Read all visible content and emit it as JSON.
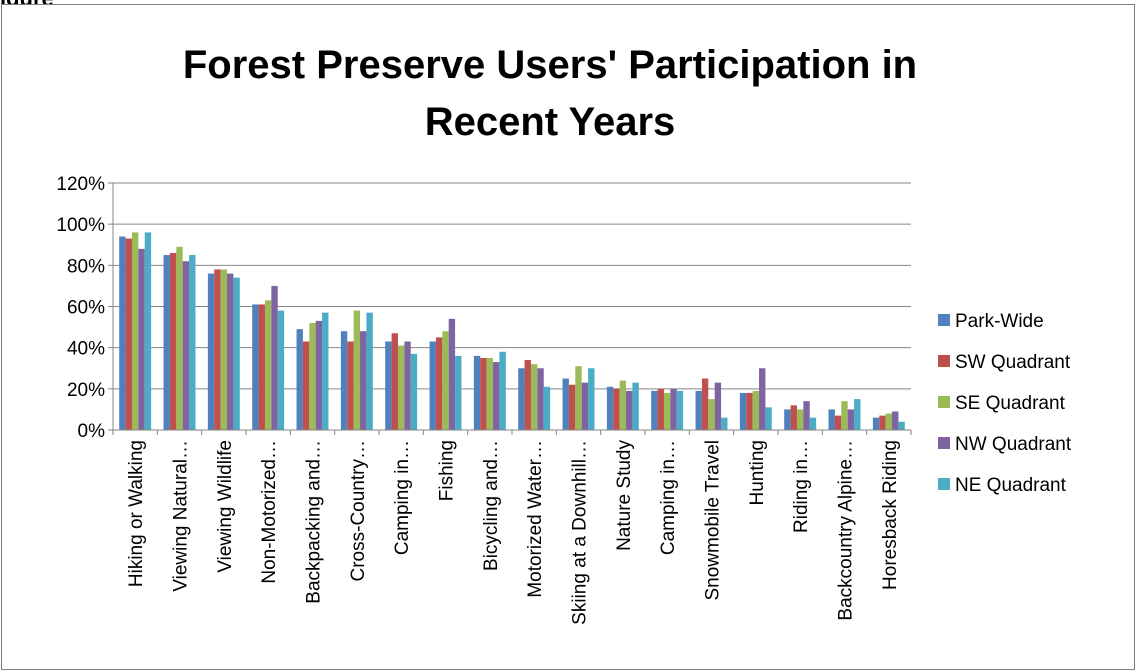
{
  "caption": "igure",
  "chart_data": {
    "type": "bar",
    "title": "Forest Preserve Users' Participation in Recent Years",
    "title_lines": [
      "Forest Preserve Users' Participation in",
      "Recent Years"
    ],
    "xlabel": "",
    "ylabel": "",
    "ylim": [
      0,
      1.2
    ],
    "y_ticks": [
      0,
      0.2,
      0.4,
      0.6,
      0.8,
      1.0,
      1.2
    ],
    "y_tick_labels": [
      "0%",
      "20%",
      "40%",
      "60%",
      "80%",
      "100%",
      "120%"
    ],
    "grid": true,
    "legend_position": "right",
    "categories": [
      "Hiking or Walking",
      "Viewing Natural…",
      "Viewing Wildlife",
      "Non-Motorized…",
      "Backpacking and…",
      "Cross-Country…",
      "Camping in…",
      "Fishing",
      "Bicycling and…",
      "Motorized Water…",
      "Skiing at a Downhill…",
      "Nature Study",
      "Camping in…",
      "Snowmobile Travel",
      "Hunting",
      "Riding in…",
      "Backcountry Alpine…",
      "Horesback Riding"
    ],
    "series": [
      {
        "name": "Park-Wide",
        "color": "#4f81bd",
        "values": [
          0.94,
          0.85,
          0.76,
          0.61,
          0.49,
          0.48,
          0.43,
          0.43,
          0.36,
          0.3,
          0.25,
          0.21,
          0.19,
          0.19,
          0.18,
          0.1,
          0.1,
          0.06
        ]
      },
      {
        "name": "SW Quadrant",
        "color": "#c0504d",
        "values": [
          0.93,
          0.86,
          0.78,
          0.61,
          0.43,
          0.43,
          0.47,
          0.45,
          0.35,
          0.34,
          0.22,
          0.2,
          0.2,
          0.25,
          0.18,
          0.12,
          0.07,
          0.07
        ]
      },
      {
        "name": "SE Quadrant",
        "color": "#9bbb59",
        "values": [
          0.96,
          0.89,
          0.78,
          0.63,
          0.52,
          0.58,
          0.41,
          0.48,
          0.35,
          0.32,
          0.31,
          0.24,
          0.18,
          0.15,
          0.19,
          0.1,
          0.14,
          0.08
        ]
      },
      {
        "name": "NW Quadrant",
        "color": "#8064a2",
        "values": [
          0.88,
          0.82,
          0.76,
          0.7,
          0.53,
          0.48,
          0.43,
          0.54,
          0.33,
          0.3,
          0.23,
          0.19,
          0.2,
          0.23,
          0.3,
          0.14,
          0.1,
          0.09
        ]
      },
      {
        "name": "NE Quadrant",
        "color": "#4bacc6",
        "values": [
          0.96,
          0.85,
          0.74,
          0.58,
          0.57,
          0.57,
          0.37,
          0.36,
          0.38,
          0.21,
          0.3,
          0.23,
          0.19,
          0.06,
          0.11,
          0.06,
          0.15,
          0.04
        ]
      }
    ]
  }
}
